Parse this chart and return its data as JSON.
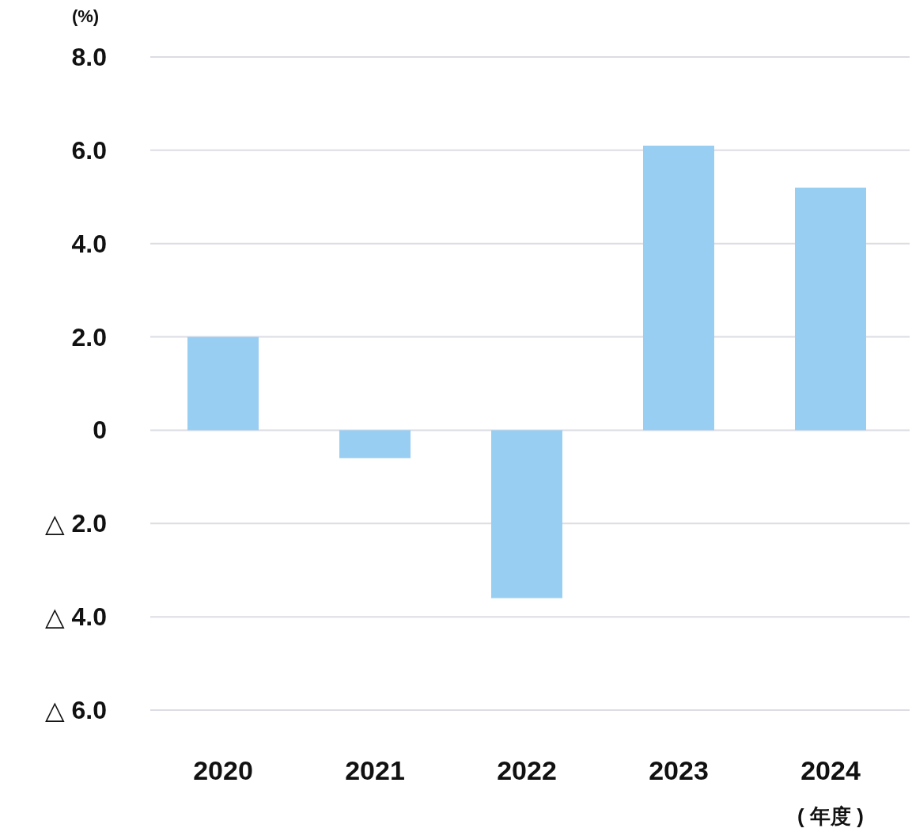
{
  "chart_data": {
    "type": "bar",
    "ylabel": "(%)",
    "xlabel": "( 年度 )",
    "categories": [
      "2020",
      "2021",
      "2022",
      "2023",
      "2024"
    ],
    "values": [
      2.0,
      -0.6,
      -3.6,
      6.1,
      5.2
    ],
    "color": "#99cef3",
    "ylim": [
      -6.0,
      8.0
    ],
    "yticks": [
      {
        "value": 8,
        "label": "8.0"
      },
      {
        "value": 6,
        "label": "6.0"
      },
      {
        "value": 4,
        "label": "4.0"
      },
      {
        "value": 2,
        "label": "2.0"
      },
      0,
      {
        "value": -2,
        "label": "△ 2.0"
      },
      {
        "value": -4,
        "label": "△ 4.0"
      },
      {
        "value": -6,
        "label": "△ 6.0"
      }
    ],
    "grid": "y"
  }
}
